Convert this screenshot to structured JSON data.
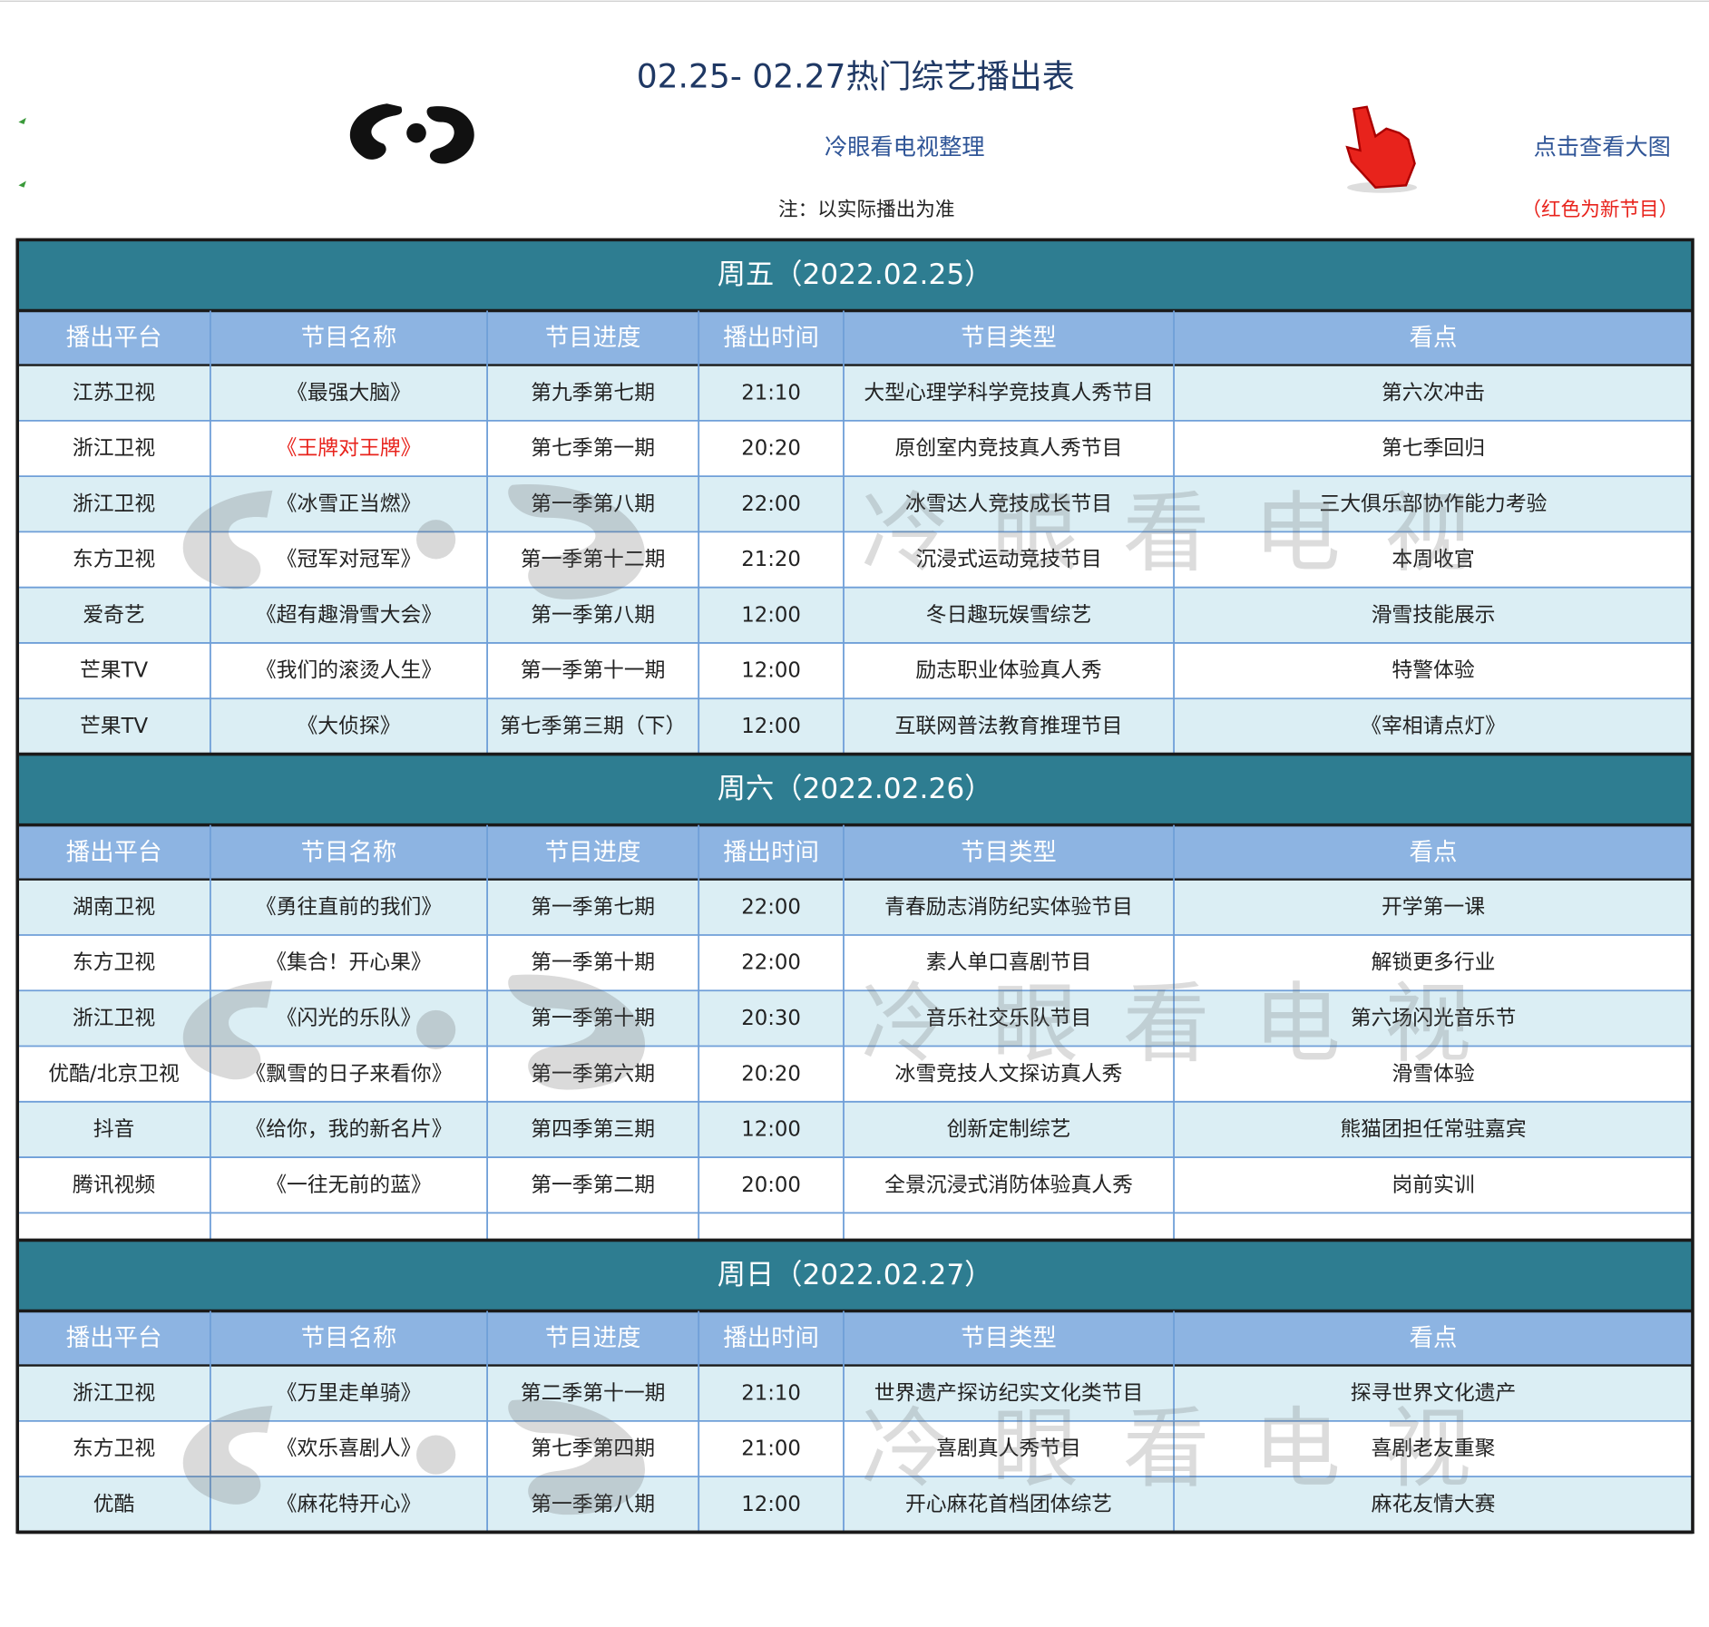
{
  "header": {
    "title": "02.25- 02.27热门综艺播出表",
    "credit": "冷眼看电视整理",
    "note": "注：以实际播出为准",
    "link": "点击查看大图",
    "legend": "（红色为新节目）",
    "legend_color": "#e8231c"
  },
  "watermark": "冷眼看电视",
  "columns": [
    "播出平台",
    "节目名称",
    "节目进度",
    "播出时间",
    "节目类型",
    "看点"
  ],
  "sections": [
    {
      "title": "周五（2022.02.25）",
      "new_rows": [
        1
      ],
      "rows": [
        [
          "江苏卫视",
          "《最强大脑》",
          "第九季第七期",
          "21:10",
          "大型心理学科学竞技真人秀节目",
          "第六次冲击"
        ],
        [
          "浙江卫视",
          "《王牌对王牌》",
          "第七季第一期",
          "20:20",
          "原创室内竞技真人秀节目",
          "第七季回归"
        ],
        [
          "浙江卫视",
          "《冰雪正当燃》",
          "第一季第八期",
          "22:00",
          "冰雪达人竞技成长节目",
          "三大俱乐部协作能力考验"
        ],
        [
          "东方卫视",
          "《冠军对冠军》",
          "第一季第十二期",
          "21:20",
          "沉浸式运动竞技节目",
          "本周收官"
        ],
        [
          "爱奇艺",
          "《超有趣滑雪大会》",
          "第一季第八期",
          "12:00",
          "冬日趣玩娱雪综艺",
          "滑雪技能展示"
        ],
        [
          "芒果TV",
          "《我们的滚烫人生》",
          "第一季第十一期",
          "12:00",
          "励志职业体验真人秀",
          "特警体验"
        ],
        [
          "芒果TV",
          "《大侦探》",
          "第七季第三期（下）",
          "12:00",
          "互联网普法教育推理节目",
          "《宰相请点灯》"
        ]
      ]
    },
    {
      "title": "周六（2022.02.26）",
      "new_rows": [],
      "rows": [
        [
          "湖南卫视",
          "《勇往直前的我们》",
          "第一季第七期",
          "22:00",
          "青春励志消防纪实体验节目",
          "开学第一课"
        ],
        [
          "东方卫视",
          "《集合！开心果》",
          "第一季第十期",
          "22:00",
          "素人单口喜剧节目",
          "解锁更多行业"
        ],
        [
          "浙江卫视",
          "《闪光的乐队》",
          "第一季第十期",
          "20:30",
          "音乐社交乐队节目",
          "第六场闪光音乐节"
        ],
        [
          "优酷/北京卫视",
          "《飘雪的日子来看你》",
          "第一季第六期",
          "20:20",
          "冰雪竞技人文探访真人秀",
          "滑雪体验"
        ],
        [
          "抖音",
          "《给你，我的新名片》",
          "第四季第三期",
          "12:00",
          "创新定制综艺",
          "熊猫团担任常驻嘉宾"
        ],
        [
          "腾讯视频",
          "《一往无前的蓝》",
          "第一季第二期",
          "20:00",
          "全景沉浸式消防体验真人秀",
          "岗前实训"
        ]
      ]
    },
    {
      "title": "周日（2022.02.27）",
      "new_rows": [],
      "rows": [
        [
          "浙江卫视",
          "《万里走单骑》",
          "第二季第十一期",
          "21:10",
          "世界遗产探访纪实文化类节目",
          "探寻世界文化遗产"
        ],
        [
          "东方卫视",
          "《欢乐喜剧人》",
          "第七季第四期",
          "21:00",
          "喜剧真人秀节目",
          "喜剧老友重聚"
        ],
        [
          "优酷",
          "《麻花特开心》",
          "第一季第八期",
          "12:00",
          "开心麻花首档团体综艺",
          "麻花友情大赛"
        ]
      ]
    }
  ]
}
